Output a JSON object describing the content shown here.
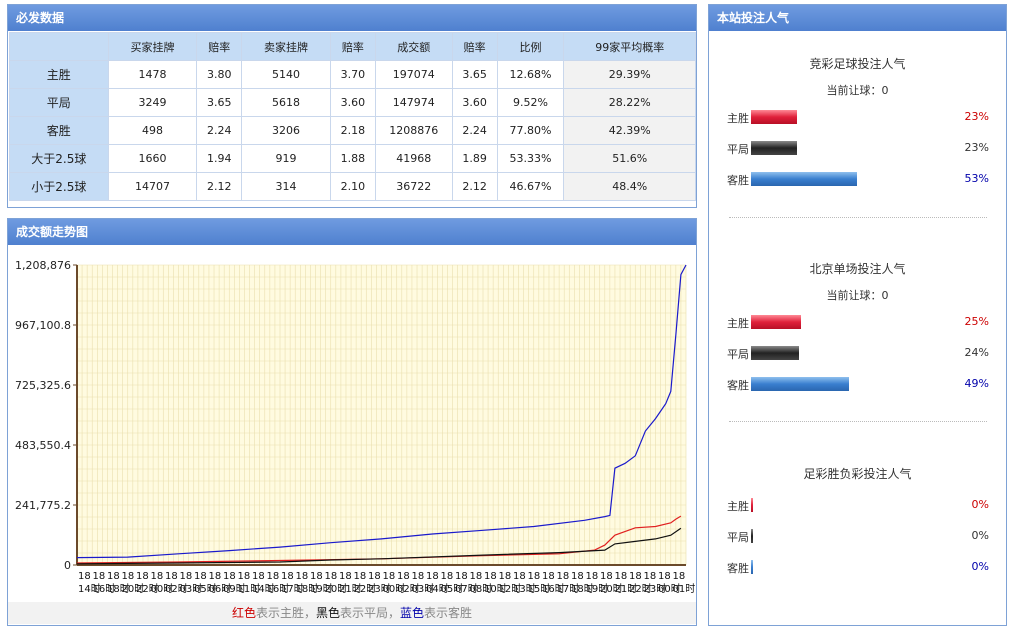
{
  "data_panel": {
    "title": "必发数据",
    "headers": [
      "",
      "买家挂牌",
      "赔率",
      "卖家挂牌",
      "赔率",
      "成交额",
      "赔率",
      "比例",
      "99家平均概率"
    ],
    "rows": [
      [
        "主胜",
        "1478",
        "3.80",
        "5140",
        "3.70",
        "197074",
        "3.65",
        "12.68%",
        "29.39%"
      ],
      [
        "平局",
        "3249",
        "3.65",
        "5618",
        "3.60",
        "147974",
        "3.60",
        "9.52%",
        "28.22%"
      ],
      [
        "客胜",
        "498",
        "2.24",
        "3206",
        "2.18",
        "1208876",
        "2.24",
        "77.80%",
        "42.39%"
      ],
      [
        "大于2.5球",
        "1660",
        "1.94",
        "919",
        "1.88",
        "41968",
        "1.89",
        "53.33%",
        "51.6%"
      ],
      [
        "小于2.5球",
        "14707",
        "2.12",
        "314",
        "2.10",
        "36722",
        "2.12",
        "46.67%",
        "48.4%"
      ]
    ]
  },
  "chart_panel": {
    "title": "成交额走势图",
    "legend": {
      "red_word": "红色",
      "red_text": "表示主胜，",
      "black_word": "黑色",
      "black_text": "表示平局，",
      "blue_word": "蓝色",
      "blue_text": "表示客胜"
    }
  },
  "chart_data": {
    "type": "line",
    "y_ticks": [
      "0",
      "241,775.2",
      "483,550.4",
      "725,325.6",
      "967,100.8",
      "1,208,876"
    ],
    "ylim": [
      0,
      1208876
    ],
    "x_tick_row1_char": "18",
    "x_tick_row2": [
      "14时",
      "16时",
      "18时",
      "20时",
      "22时",
      "00时",
      "02时",
      "03时",
      "05时",
      "06时",
      "09时",
      "11时",
      "14时",
      "16时",
      "17时",
      "18时",
      "19时",
      "20时",
      "21时",
      "22时",
      "23时",
      "00时",
      "02时",
      "03时",
      "04时",
      "05时",
      "07时",
      "08时",
      "10时",
      "12时",
      "13时",
      "15时",
      "16时",
      "17时",
      "18时",
      "19时",
      "20时",
      "21时",
      "22时",
      "23时",
      "00时",
      "01时"
    ],
    "x_count": 120,
    "series": [
      {
        "color": "#1a1acc",
        "values": [
          [
            0,
            30000
          ],
          [
            10,
            32000
          ],
          [
            20,
            45000
          ],
          [
            30,
            58000
          ],
          [
            40,
            72000
          ],
          [
            50,
            90000
          ],
          [
            60,
            105000
          ],
          [
            70,
            125000
          ],
          [
            80,
            140000
          ],
          [
            90,
            155000
          ],
          [
            100,
            180000
          ],
          [
            104,
            195000
          ],
          [
            105,
            200000
          ],
          [
            106,
            390000
          ],
          [
            108,
            410000
          ],
          [
            110,
            440000
          ],
          [
            112,
            540000
          ],
          [
            114,
            590000
          ],
          [
            116,
            650000
          ],
          [
            117,
            700000
          ],
          [
            118,
            930000
          ],
          [
            119,
            1170000
          ],
          [
            120,
            1208876
          ]
        ]
      },
      {
        "color": "#e02020",
        "values": [
          [
            0,
            8000
          ],
          [
            20,
            12000
          ],
          [
            40,
            18000
          ],
          [
            60,
            25000
          ],
          [
            80,
            38000
          ],
          [
            95,
            45000
          ],
          [
            102,
            60000
          ],
          [
            104,
            80000
          ],
          [
            106,
            120000
          ],
          [
            110,
            150000
          ],
          [
            114,
            155000
          ],
          [
            117,
            170000
          ],
          [
            118,
            185000
          ],
          [
            119,
            197074
          ]
        ]
      },
      {
        "color": "#111111",
        "values": [
          [
            0,
            5000
          ],
          [
            20,
            8000
          ],
          [
            40,
            12000
          ],
          [
            50,
            20000
          ],
          [
            60,
            25000
          ],
          [
            80,
            40000
          ],
          [
            95,
            50000
          ],
          [
            104,
            60000
          ],
          [
            106,
            85000
          ],
          [
            110,
            95000
          ],
          [
            114,
            105000
          ],
          [
            117,
            120000
          ],
          [
            119,
            147974
          ]
        ]
      }
    ]
  },
  "popularity_panel": {
    "title": "本站投注人气",
    "sections": [
      {
        "title": "竞彩足球投注人气",
        "sub": "当前让球：0",
        "rows": [
          {
            "label": "主胜",
            "pct": "23%",
            "value": 23,
            "bar_color": "red",
            "pct_color": "#cc0000"
          },
          {
            "label": "平局",
            "pct": "23%",
            "value": 23,
            "bar_color": "black",
            "pct_color": "#333333"
          },
          {
            "label": "客胜",
            "pct": "53%",
            "value": 53,
            "bar_color": "blue",
            "pct_color": "#0000aa"
          }
        ]
      },
      {
        "title": "北京单场投注人气",
        "sub": "当前让球：0",
        "rows": [
          {
            "label": "主胜",
            "pct": "25%",
            "value": 25,
            "bar_color": "red",
            "pct_color": "#cc0000"
          },
          {
            "label": "平局",
            "pct": "24%",
            "value": 24,
            "bar_color": "black",
            "pct_color": "#333333"
          },
          {
            "label": "客胜",
            "pct": "49%",
            "value": 49,
            "bar_color": "blue",
            "pct_color": "#0000aa"
          }
        ]
      },
      {
        "title": "足彩胜负彩投注人气",
        "sub": "",
        "rows": [
          {
            "label": "主胜",
            "pct": "0%",
            "value": 0,
            "bar_color": "red",
            "pct_color": "#cc0000"
          },
          {
            "label": "平局",
            "pct": "0%",
            "value": 0,
            "bar_color": "black",
            "pct_color": "#333333"
          },
          {
            "label": "客胜",
            "pct": "0%",
            "value": 0,
            "bar_color": "blue",
            "pct_color": "#0000aa"
          }
        ]
      }
    ]
  }
}
